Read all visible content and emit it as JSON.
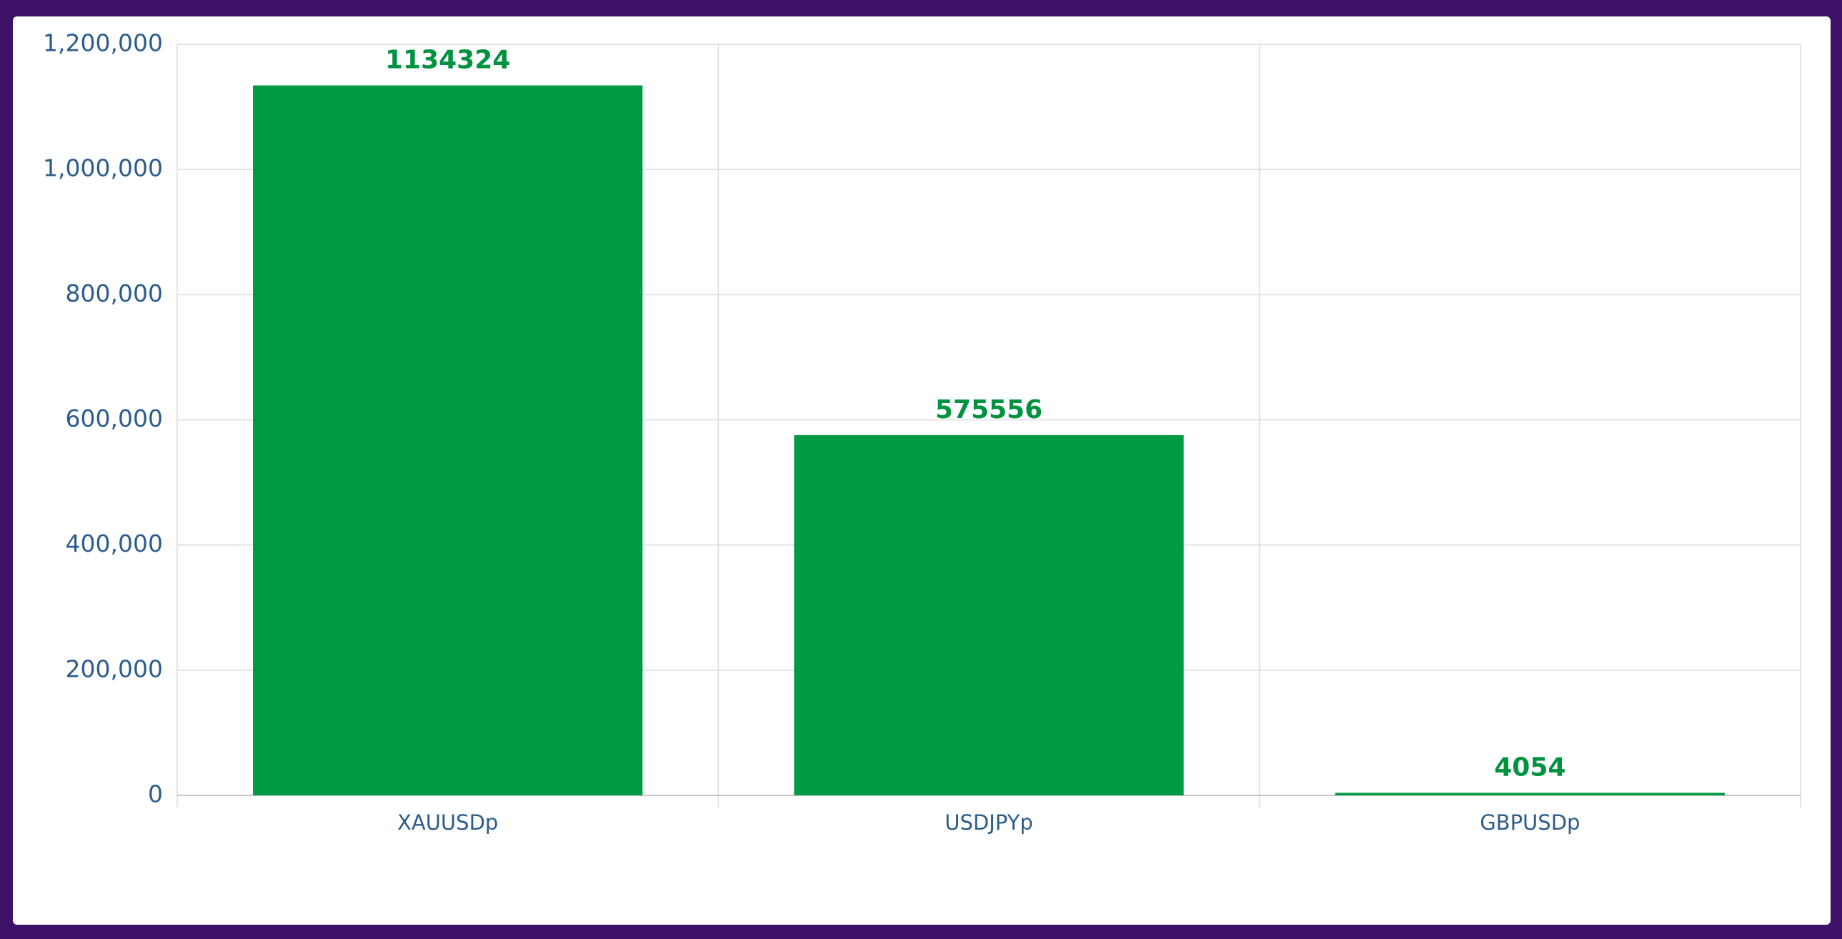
{
  "chart_data": {
    "type": "bar",
    "categories": [
      "XAUUSDp",
      "USDJPYp",
      "GBPUSDp"
    ],
    "values": [
      1134324,
      575556,
      4054
    ],
    "color": "#009944",
    "ylim": [
      0,
      1200000
    ],
    "yticks": [
      0,
      {
        "value": 200000,
        "label": "200,000"
      },
      {
        "value": 400000,
        "label": "400,000"
      },
      {
        "value": 600000,
        "label": "600,000"
      },
      {
        "value": 800000,
        "label": "800,000"
      },
      {
        "value": 1000000,
        "label": "1,000,000"
      },
      {
        "value": 1200000,
        "label": "1,200,000"
      }
    ],
    "grid": true
  }
}
